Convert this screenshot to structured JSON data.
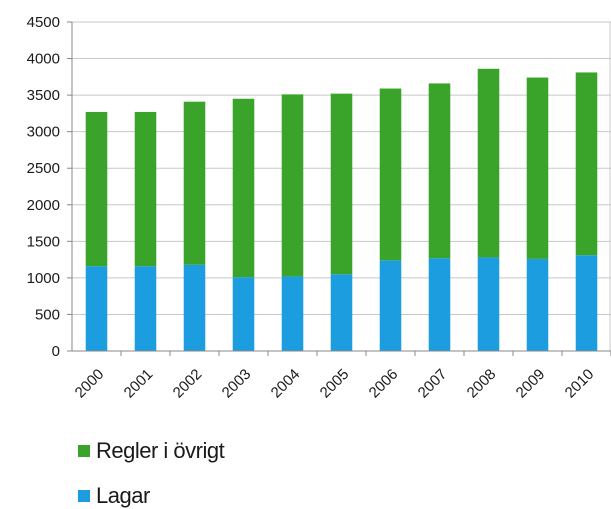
{
  "chart_data": {
    "type": "bar",
    "stacked": true,
    "categories": [
      "2000",
      "2001",
      "2002",
      "2003",
      "2004",
      "2005",
      "2006",
      "2007",
      "2008",
      "2009",
      "2010"
    ],
    "series": [
      {
        "name": "Lagar",
        "color": "#1c9de0",
        "values": [
          1160,
          1160,
          1180,
          1010,
          1020,
          1050,
          1240,
          1270,
          1280,
          1260,
          1310
        ]
      },
      {
        "name": "Regler i övrigt",
        "color": "#3aa32a",
        "values": [
          2110,
          2110,
          2230,
          2440,
          2490,
          2470,
          2350,
          2390,
          2580,
          2480,
          2500
        ]
      }
    ],
    "yticks": [
      "0",
      "500",
      "1000",
      "1500",
      "2000",
      "2500",
      "3000",
      "3500",
      "4000",
      "4500"
    ],
    "ylim": [
      0,
      4500
    ],
    "grid": true,
    "legend_position": "bottom-left",
    "title": "",
    "xlabel": "",
    "ylabel": ""
  },
  "legend": {
    "items": [
      {
        "label": "Regler i övrigt",
        "color": "#3aa32a"
      },
      {
        "label": "Lagar",
        "color": "#1c9de0"
      }
    ]
  }
}
